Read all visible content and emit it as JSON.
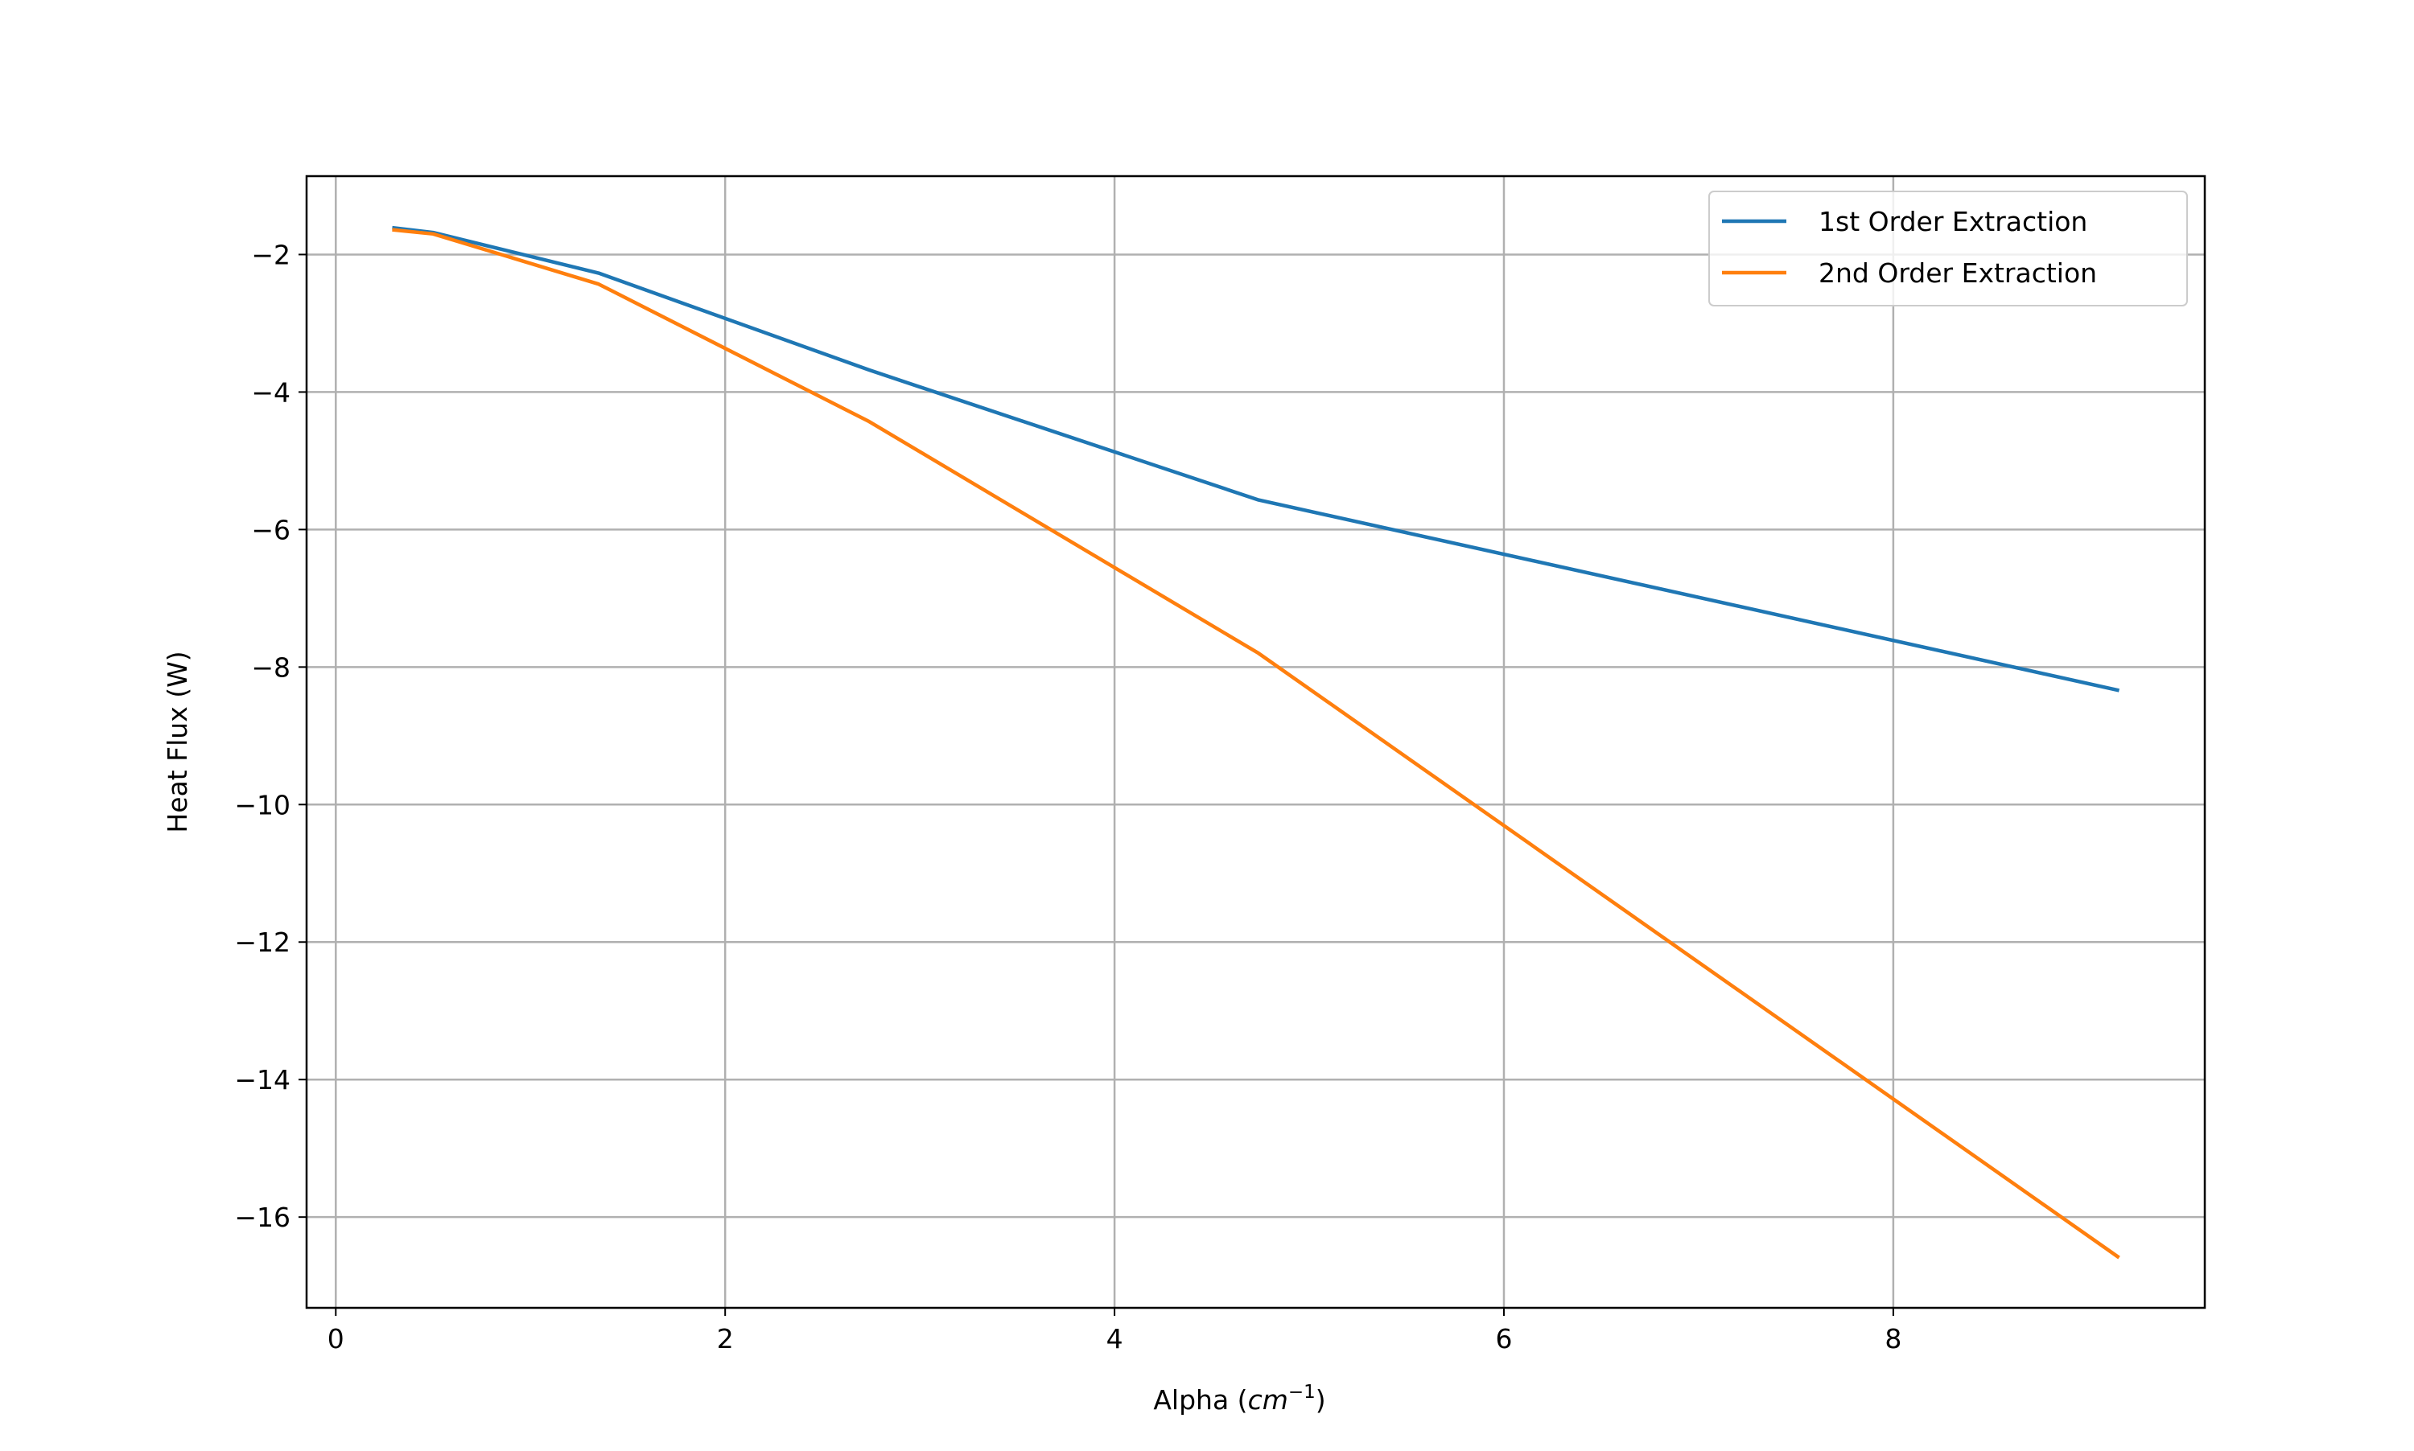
{
  "chart_data": {
    "type": "line",
    "title": "",
    "xlabel": "Alpha (",
    "xlabel_math": "cm",
    "xlabel_sup": "−1",
    "xlabel_end": ")",
    "ylabel": "Heat Flux (W)",
    "xlim": [
      -0.15,
      9.6
    ],
    "ylim": [
      -17.32,
      -0.86
    ],
    "xticks": [
      0,
      2,
      4,
      6,
      8
    ],
    "xtick_labels": [
      "0",
      "2",
      "4",
      "6",
      "8"
    ],
    "yticks": [
      -2,
      -4,
      -6,
      -8,
      -10,
      -12,
      -14,
      -16
    ],
    "ytick_labels": [
      "−2",
      "−4",
      "−6",
      "−8",
      "−10",
      "−12",
      "−14",
      "−16"
    ],
    "grid": true,
    "legend_position": "top-right",
    "x": [
      0.29,
      0.5,
      1.35,
      2.74,
      4.74,
      9.16
    ],
    "series": [
      {
        "name": "1st Order Extraction",
        "color": "#1f77b4",
        "values": [
          -1.61,
          -1.68,
          -2.27,
          -3.68,
          -5.57,
          -8.34
        ]
      },
      {
        "name": "2nd Order Extraction",
        "color": "#ff7f0e",
        "values": [
          -1.64,
          -1.7,
          -2.43,
          -4.43,
          -7.8,
          -16.59
        ]
      }
    ]
  }
}
